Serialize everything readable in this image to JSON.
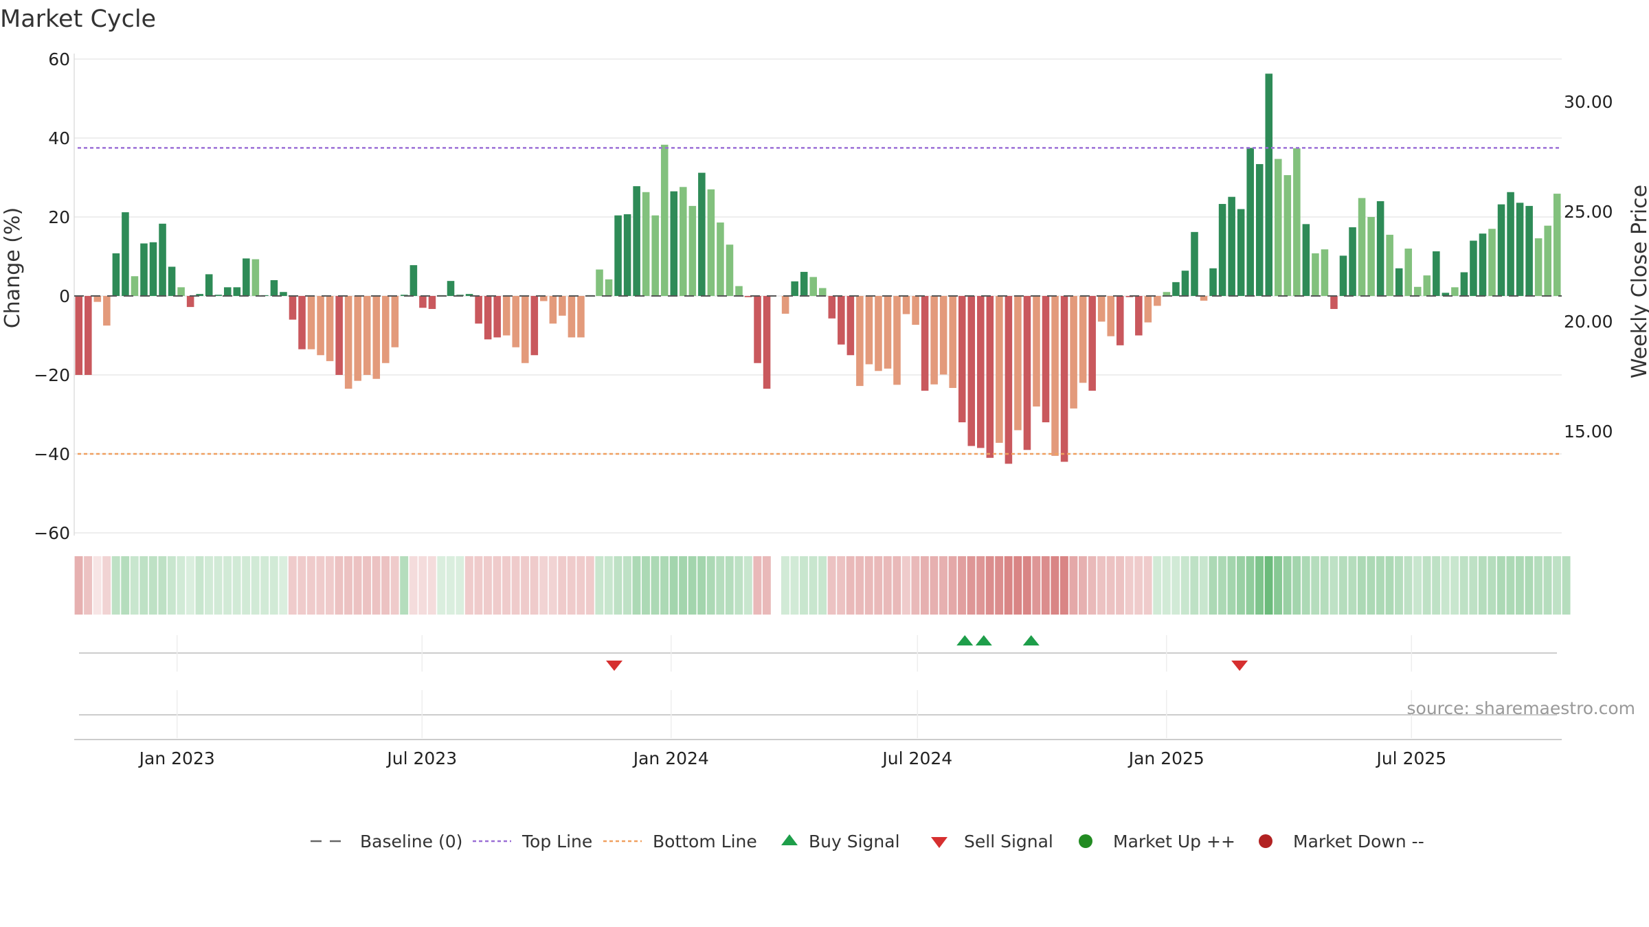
{
  "title": "Market Cycle",
  "source_text": "source: sharemaestro.com",
  "colors": {
    "green_dark": "#2e8b57",
    "green_light": "#82c17d",
    "red_dark": "#c9585d",
    "red_light": "#e39a7b",
    "top_line": "#9b6fd6",
    "bottom_line": "#f0a060",
    "buy": "#1e9e4a",
    "sell": "#d62f2f",
    "market_up": "#228b22",
    "market_down": "#b22222",
    "grid": "#e8e8e8"
  },
  "chart_data": {
    "type": "bar",
    "left_axis": {
      "label": "Change (%)",
      "ylim": [
        -60,
        60
      ],
      "ticks": [
        60,
        40,
        20,
        0,
        -20,
        -40,
        -60
      ],
      "tick_labels": [
        "60",
        "40",
        "20",
        "0",
        "−20",
        "−40",
        "−60"
      ]
    },
    "right_axis": {
      "label": "Weekly Close Price",
      "ylim": [
        10,
        32.5
      ],
      "ticks": [
        30,
        25,
        20,
        15
      ],
      "tick_labels": [
        "30.00",
        "25.00",
        "20.00",
        "15.00"
      ]
    },
    "x_axis": {
      "start": "2022-10-17",
      "end": "2025-10-20",
      "ticks": [
        {
          "date": "2023-01-01",
          "label": "Jan 2023"
        },
        {
          "date": "2023-07-01",
          "label": "Jul 2023"
        },
        {
          "date": "2024-01-01",
          "label": "Jan 2024"
        },
        {
          "date": "2024-07-01",
          "label": "Jul 2024"
        },
        {
          "date": "2025-01-01",
          "label": "Jan 2025"
        },
        {
          "date": "2025-07-01",
          "label": "Jul 2025"
        }
      ]
    },
    "top_line": 37.5,
    "bottom_line": -40,
    "grid": true,
    "bar_start_date": "2022-10-17",
    "bar_interval_days": 7,
    "values": [
      -20,
      -20,
      -1.5,
      -7.5,
      10.8,
      21.2,
      5,
      13.3,
      13.6,
      18.3,
      7.4,
      2.2,
      -2.8,
      0.5,
      5.5,
      0.3,
      2.2,
      2.2,
      9.5,
      9.3,
      0.2,
      4,
      1,
      -6,
      -13.5,
      -13.5,
      -15,
      -16.5,
      -20,
      -23.5,
      -21.5,
      -20,
      -21,
      -17,
      -13,
      0.3,
      7.8,
      -3,
      -3.3,
      0.2,
      3.8,
      0.3,
      0.5,
      -7,
      -11,
      -10.5,
      -10,
      -13,
      -17,
      -15,
      -1.3,
      -7,
      -5,
      -10.5,
      -10.5,
      0.2,
      6.7,
      4.2,
      20.4,
      20.7,
      27.8,
      26.3,
      20.4,
      38.3,
      26.5,
      27.6,
      22.8,
      31.2,
      27,
      18.6,
      13,
      2.5,
      -0.3,
      -17,
      -23.5,
      0,
      -4.5,
      3.7,
      6.1,
      4.8,
      2,
      -5.7,
      -12.3,
      -15,
      -22.8,
      -17.3,
      -19,
      -18.4,
      -22.5,
      -4.6,
      -7.3,
      -24,
      -22.4,
      -19.9,
      -23.3,
      -32,
      -38,
      -38.5,
      -41,
      -37.2,
      -42.5,
      -34,
      -39,
      -28,
      -32,
      -40.5,
      -42,
      -28.5,
      -22,
      -24,
      -6.5,
      -10.2,
      -12.5,
      -0.3,
      -10,
      -6.7,
      -2.5,
      1,
      3.5,
      6.4,
      16.2,
      -1.2,
      7,
      23.3,
      25.1,
      22,
      37.5,
      33.4,
      56.3,
      34.7,
      30.6,
      37.4,
      18.2,
      10.8,
      11.8,
      -3.3,
      10.2,
      17.4,
      24.8,
      20,
      24,
      15.5,
      7,
      12,
      2.3,
      5.2,
      11.3,
      0.8,
      2.2,
      6,
      14,
      15.8,
      17,
      23.2,
      26.3,
      23.6,
      22.8,
      14.6,
      17.8,
      25.9
    ],
    "light_indices": [
      2,
      3,
      6,
      11,
      19,
      25,
      26,
      27,
      29,
      30,
      31,
      32,
      33,
      34,
      46,
      47,
      48,
      50,
      51,
      52,
      53,
      54,
      56,
      57,
      61,
      62,
      63,
      65,
      66,
      68,
      69,
      70,
      71,
      76,
      79,
      80,
      84,
      85,
      86,
      87,
      88,
      89,
      90,
      92,
      93,
      94,
      99,
      101,
      103,
      105,
      107,
      108,
      110,
      111,
      115,
      116,
      117,
      121,
      129,
      130,
      131,
      133,
      134,
      138,
      139,
      141,
      143,
      144,
      145,
      148,
      152,
      157,
      158,
      159,
      160,
      161
    ],
    "heat_levels": [
      -0.45,
      -0.35,
      -0.15,
      -0.25,
      0.35,
      0.4,
      0.3,
      0.35,
      0.35,
      0.35,
      0.3,
      0.25,
      0.2,
      0.3,
      0.25,
      0.25,
      0.25,
      0.25,
      0.25,
      0.25,
      0.25,
      0.25,
      0.2,
      -0.3,
      -0.3,
      -0.3,
      -0.3,
      -0.3,
      -0.35,
      -0.35,
      -0.35,
      -0.35,
      -0.35,
      -0.35,
      -0.3,
      0.4,
      -0.2,
      -0.2,
      -0.2,
      0.2,
      0.2,
      0.2,
      -0.3,
      -0.3,
      -0.3,
      -0.3,
      -0.3,
      -0.3,
      -0.3,
      -0.3,
      -0.25,
      -0.25,
      -0.3,
      -0.3,
      -0.3,
      -0.3,
      0.3,
      0.3,
      0.35,
      0.35,
      0.45,
      0.45,
      0.45,
      0.45,
      0.5,
      0.5,
      0.5,
      0.5,
      0.45,
      0.4,
      0.4,
      0.35,
      0.3,
      -0.4,
      -0.4,
      null,
      0.25,
      0.25,
      0.3,
      0.3,
      0.3,
      -0.35,
      -0.35,
      -0.4,
      -0.4,
      -0.4,
      -0.4,
      -0.4,
      -0.4,
      -0.3,
      -0.4,
      -0.45,
      -0.45,
      -0.45,
      -0.5,
      -0.55,
      -0.6,
      -0.6,
      -0.65,
      -0.65,
      -0.7,
      -0.7,
      -0.7,
      -0.6,
      -0.65,
      -0.7,
      -0.7,
      -0.5,
      -0.45,
      -0.4,
      -0.35,
      -0.35,
      -0.35,
      -0.3,
      -0.3,
      -0.3,
      0.25,
      0.25,
      0.25,
      0.3,
      0.35,
      0.3,
      0.45,
      0.45,
      0.5,
      0.55,
      0.6,
      0.7,
      0.8,
      0.65,
      0.55,
      0.5,
      0.45,
      0.4,
      0.4,
      0.35,
      0.4,
      0.4,
      0.45,
      0.45,
      0.45,
      0.45,
      0.4,
      0.35,
      0.3,
      0.35,
      0.35,
      0.3,
      0.3,
      0.35,
      0.35,
      0.4,
      0.4,
      0.45,
      0.45,
      0.45,
      0.45,
      0.4,
      0.4,
      0.35,
      0.4
    ],
    "buy_signals": [
      "2024-08-05",
      "2024-08-19",
      "2024-09-23"
    ],
    "sell_signals": [
      "2023-11-20",
      "2025-02-24"
    ],
    "legend": [
      {
        "type": "dash",
        "label": "Baseline (0)"
      },
      {
        "type": "dot-purple",
        "label": "Top Line"
      },
      {
        "type": "dot-orange",
        "label": "Bottom Line"
      },
      {
        "type": "tri-up",
        "label": "Buy Signal"
      },
      {
        "type": "tri-down",
        "label": "Sell Signal"
      },
      {
        "type": "circle-green",
        "label": "Market Up ++"
      },
      {
        "type": "circle-red",
        "label": "Market Down --"
      }
    ]
  }
}
